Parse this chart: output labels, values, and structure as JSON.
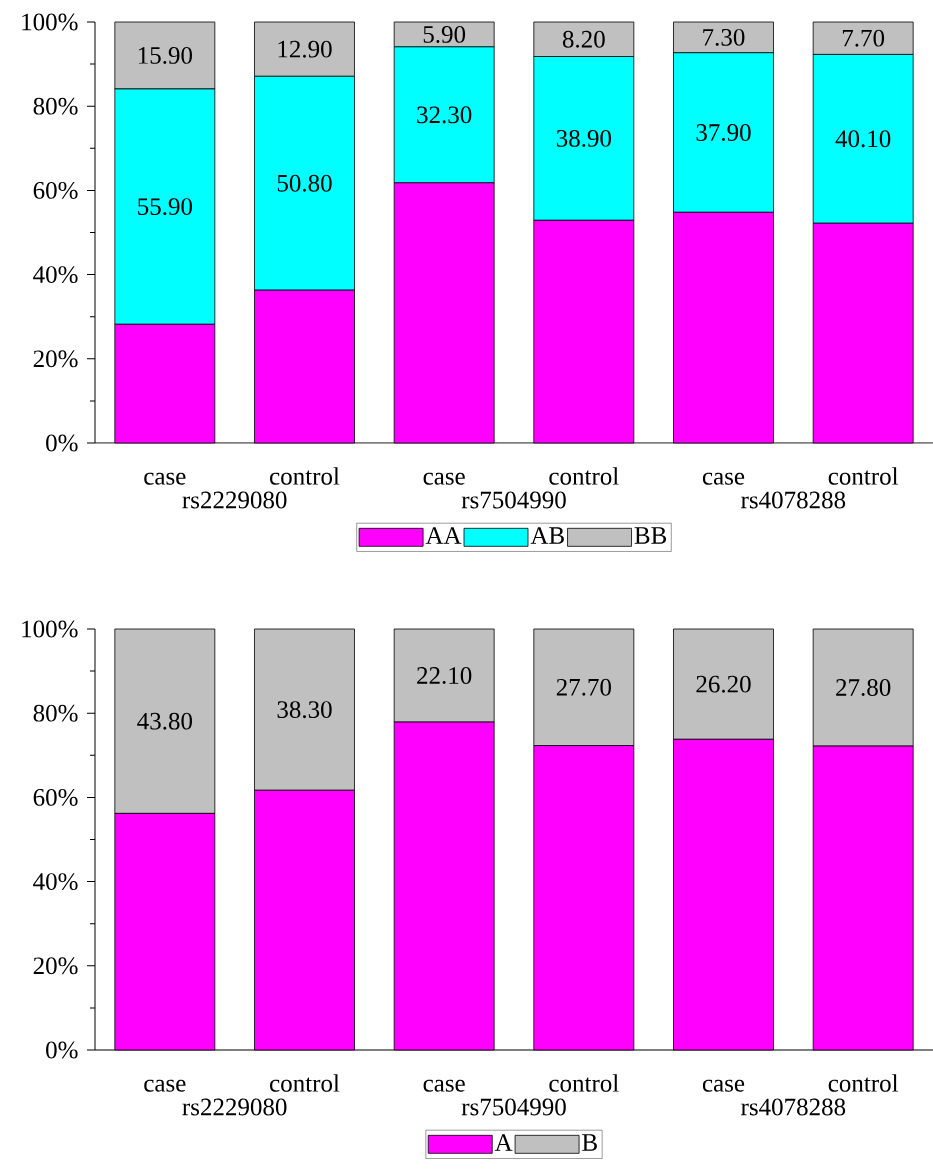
{
  "chart_data": [
    {
      "type": "bar",
      "stacked": true,
      "categories": [
        "case",
        "control",
        "case",
        "control",
        "case",
        "control"
      ],
      "series": [
        {
          "name": "AA",
          "color": "#ff00ff",
          "values": [
            28.2,
            36.3,
            61.8,
            52.9,
            54.8,
            52.2
          ]
        },
        {
          "name": "AB",
          "color": "#00ffff",
          "values": [
            55.9,
            50.8,
            32.3,
            38.9,
            37.9,
            40.1
          ],
          "value_labels": [
            "55.90",
            "50.80",
            "32.30",
            "38.90",
            "37.90",
            "40.10"
          ]
        },
        {
          "name": "BB",
          "color": "#c0c0c0",
          "values": [
            15.9,
            12.9,
            5.9,
            8.2,
            7.3,
            7.7
          ],
          "value_labels": [
            "15.90",
            "12.90",
            "5.90",
            "8.20",
            "7.30",
            "7.70"
          ]
        }
      ],
      "ylim": [
        0,
        100
      ],
      "yticks": [
        {
          "value": 0,
          "label": "0%"
        },
        {
          "value": 20,
          "label": "20%"
        },
        {
          "value": 40,
          "label": "40%"
        },
        {
          "value": 60,
          "label": "60%"
        },
        {
          "value": 80,
          "label": "80%"
        },
        {
          "value": 100,
          "label": "100%"
        }
      ],
      "annotations": [
        "rs2229080",
        "rs7504990",
        "rs4078288"
      ],
      "legend": "bottom"
    },
    {
      "type": "bar",
      "stacked": true,
      "categories": [
        "case",
        "control",
        "case",
        "control",
        "case",
        "control"
      ],
      "series": [
        {
          "name": "A",
          "color": "#ff00ff",
          "values": [
            56.2,
            61.7,
            77.9,
            72.3,
            73.8,
            72.2
          ]
        },
        {
          "name": "B",
          "color": "#c0c0c0",
          "values": [
            43.8,
            38.3,
            22.1,
            27.7,
            26.2,
            27.8
          ],
          "value_labels": [
            "43.80",
            "38.30",
            "22.10",
            "27.70",
            "26.20",
            "27.80"
          ]
        }
      ],
      "ylim": [
        0,
        100
      ],
      "yticks": [
        {
          "value": 0,
          "label": "0%"
        },
        {
          "value": 20,
          "label": "20%"
        },
        {
          "value": 40,
          "label": "40%"
        },
        {
          "value": 60,
          "label": "60%"
        },
        {
          "value": 80,
          "label": "80%"
        },
        {
          "value": 100,
          "label": "100%"
        }
      ],
      "annotations": [
        "rs2229080",
        "rs7504990",
        "rs4078288"
      ],
      "legend": "bottom"
    }
  ]
}
